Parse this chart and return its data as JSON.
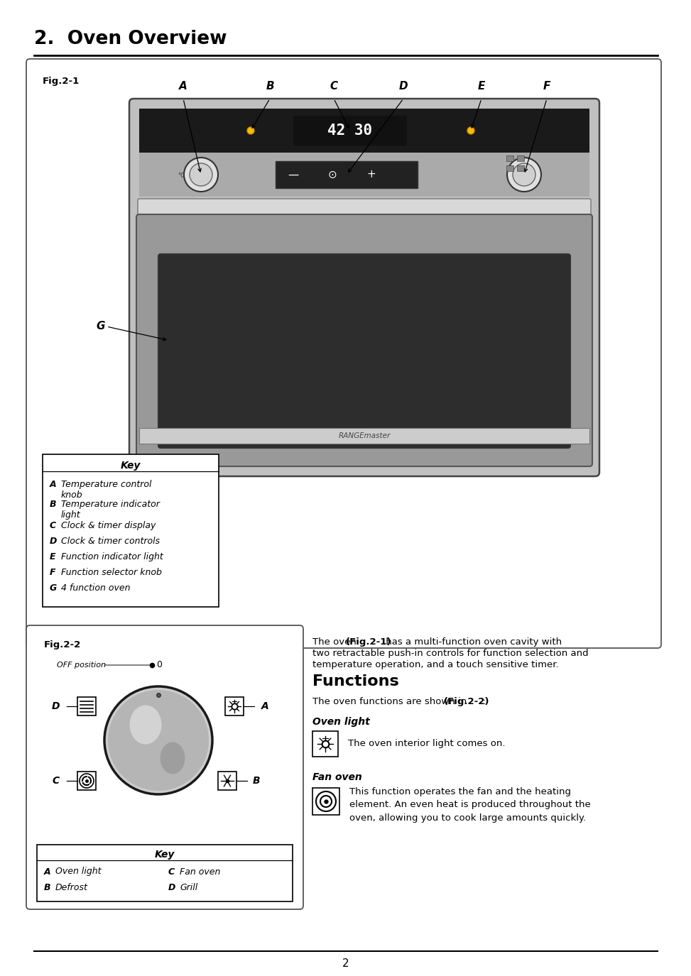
{
  "title": "2.  Oven Overview",
  "fig1_label": "Fig.2-1",
  "fig2_label": "Fig.2-2",
  "page_number": "2",
  "key1_title": "Key",
  "key1_items": [
    [
      "A",
      "Temperature control\nknob"
    ],
    [
      "B",
      "Temperature indicator\nlight"
    ],
    [
      "C",
      "Clock & timer display"
    ],
    [
      "D",
      "Clock & timer controls"
    ],
    [
      "E",
      "Function indicator light"
    ],
    [
      "F",
      "Function selector knob"
    ],
    [
      "G",
      "4 function oven"
    ]
  ],
  "key2_items": [
    [
      "A",
      "Oven light",
      "C",
      "Fan oven"
    ],
    [
      "B",
      "Defrost",
      "D",
      "Grill"
    ]
  ],
  "fig1_letters": [
    "A",
    "B",
    "C",
    "D",
    "E",
    "F"
  ],
  "fig1_letter_g": "G",
  "off_position_text": "OFF position",
  "oven_intro_plain": "The oven ",
  "oven_intro_bold": "(Fig.2-1)",
  "oven_intro_rest": " has a multi-function oven cavity with\ntwo retractable push-in controls for function selection and\ntemperature operation, and a touch sensitive timer.",
  "functions_title": "Functions",
  "functions_intro_plain": "The oven functions are shown in ",
  "functions_intro_bold": "(Fig.2-2)",
  "functions_intro_end": ":",
  "oven_light_title": "Oven light",
  "oven_light_text": "The oven interior light comes on.",
  "fan_oven_title": "Fan oven",
  "fan_oven_text": "This function operates the fan and the heating\nelement. An even heat is produced throughout the\noven, allowing you to cook large amounts quickly.",
  "rangemaster_text": "RANGEmaster",
  "bg_color": "#ffffff"
}
